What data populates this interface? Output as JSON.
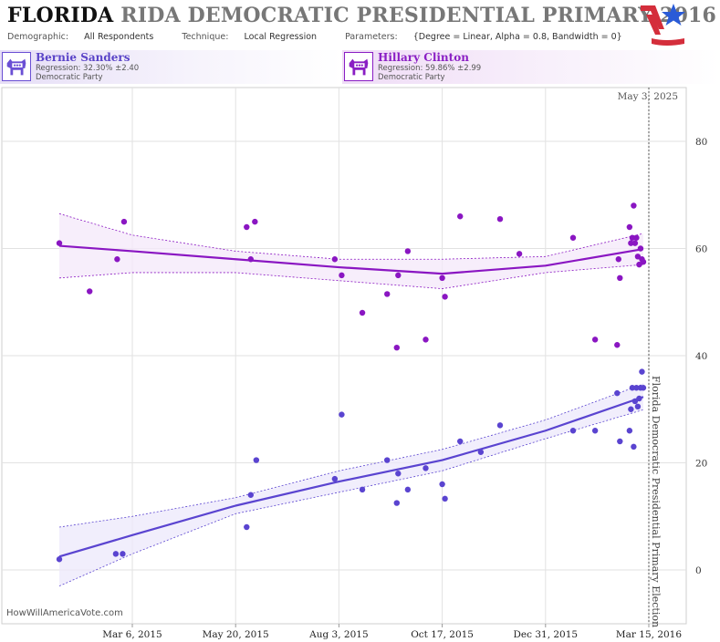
{
  "header": {
    "title_state": "FLORIDA",
    "title_rest": "RIDA DEMOCRATIC PRESIDENTIAL PRIMARY 2016",
    "demographic_label": "Demographic:",
    "demographic_value": "All Respondents",
    "technique_label": "Technique:",
    "technique_value": "Local Regression",
    "parameters_label": "Parameters:",
    "parameters_value": "{Degree = Linear, Alpha = 0.8, Bandwidth = 0}"
  },
  "legend": [
    {
      "name": "Bernie Sanders",
      "regression": "Regression: 32.30% ±2.40",
      "party": "Democratic Party",
      "icon": "democratic-donkey-icon"
    },
    {
      "name": "Hillary Clinton",
      "regression": "Regression: 59.86% ±2.99",
      "party": "Democratic Party",
      "icon": "democratic-donkey-icon"
    }
  ],
  "footer": {
    "url": "HowWillAmericaVote.com"
  },
  "colors": {
    "sanders": "#5a44d0",
    "clinton": "#8a16c2",
    "band_sanders": "#ece8fb",
    "band_clinton": "#f4e8f9",
    "grid": "#e2e2e2",
    "logo_red": "#d42e3b",
    "logo_blue": "#2a5bd7"
  },
  "chart_data": {
    "type": "scatter",
    "x_axis": "date",
    "xlim": [
      "2015-01-01",
      "2016-03-16"
    ],
    "ylim": [
      -5,
      88
    ],
    "y_ticks": [
      0,
      20,
      40,
      60,
      80
    ],
    "x_tick_labels": [
      {
        "date": "2015-03-06",
        "label": "Mar 6, 2015"
      },
      {
        "date": "2015-05-20",
        "label": "May 20, 2015"
      },
      {
        "date": "2015-08-03",
        "label": "Aug 3, 2015"
      },
      {
        "date": "2015-10-17",
        "label": "Oct 17, 2015"
      },
      {
        "date": "2015-12-31",
        "label": "Dec 31, 2015"
      },
      {
        "date": "2016-03-15",
        "label": "Mar 15, 2016"
      }
    ],
    "grid": true,
    "corner_label": "May 3, 2025",
    "event_line": {
      "date": "2016-03-15",
      "label": "Florida Democratic Presidential Primary Election"
    },
    "series": [
      {
        "name": "Bernie Sanders",
        "points": [
          [
            "2015-01-12",
            2
          ],
          [
            "2015-02-22",
            3
          ],
          [
            "2015-02-27",
            3
          ],
          [
            "2015-05-28",
            8
          ],
          [
            "2015-05-31",
            14
          ],
          [
            "2015-06-04",
            20.5
          ],
          [
            "2015-07-31",
            17
          ],
          [
            "2015-08-05",
            29
          ],
          [
            "2015-08-20",
            15
          ],
          [
            "2015-09-07",
            20.5
          ],
          [
            "2015-09-14",
            12.5
          ],
          [
            "2015-09-15",
            18
          ],
          [
            "2015-09-22",
            15
          ],
          [
            "2015-10-05",
            19
          ],
          [
            "2015-10-17",
            16
          ],
          [
            "2015-10-19",
            13.3
          ],
          [
            "2015-10-30",
            24
          ],
          [
            "2015-11-14",
            22
          ],
          [
            "2015-11-28",
            27
          ],
          [
            "2016-01-20",
            26
          ],
          [
            "2016-02-05",
            26
          ],
          [
            "2016-02-21",
            33
          ],
          [
            "2016-02-23",
            24
          ],
          [
            "2016-03-01",
            26
          ],
          [
            "2016-03-02",
            30
          ],
          [
            "2016-03-03",
            34
          ],
          [
            "2016-03-04",
            23
          ],
          [
            "2016-03-05",
            31.5
          ],
          [
            "2016-03-06",
            34
          ],
          [
            "2016-03-07",
            30.5
          ],
          [
            "2016-03-08",
            32
          ],
          [
            "2016-03-09",
            34
          ],
          [
            "2016-03-10",
            37
          ],
          [
            "2016-03-11",
            34
          ]
        ],
        "trend": [
          [
            "2015-01-12",
            2.5
          ],
          [
            "2015-03-06",
            6.5
          ],
          [
            "2015-05-20",
            12
          ],
          [
            "2015-08-03",
            16.5
          ],
          [
            "2015-10-17",
            20.5
          ],
          [
            "2015-12-31",
            26
          ],
          [
            "2016-03-11",
            32.3
          ]
        ],
        "band_upper": [
          [
            "2015-01-12",
            8
          ],
          [
            "2015-03-06",
            10
          ],
          [
            "2015-05-20",
            13.5
          ],
          [
            "2015-08-03",
            18.5
          ],
          [
            "2015-10-17",
            22.5
          ],
          [
            "2015-12-31",
            28
          ],
          [
            "2016-03-11",
            34.7
          ]
        ],
        "band_lower": [
          [
            "2015-01-12",
            -3
          ],
          [
            "2015-03-06",
            3
          ],
          [
            "2015-05-20",
            10.5
          ],
          [
            "2015-08-03",
            14.5
          ],
          [
            "2015-10-17",
            18.5
          ],
          [
            "2015-12-31",
            24.5
          ],
          [
            "2016-03-11",
            29.9
          ]
        ]
      },
      {
        "name": "Hillary Clinton",
        "points": [
          [
            "2015-01-12",
            61
          ],
          [
            "2015-02-03",
            52
          ],
          [
            "2015-02-23",
            58
          ],
          [
            "2015-02-28",
            65
          ],
          [
            "2015-05-28",
            64
          ],
          [
            "2015-05-31",
            58
          ],
          [
            "2015-06-03",
            65
          ],
          [
            "2015-07-31",
            58
          ],
          [
            "2015-08-05",
            55
          ],
          [
            "2015-08-20",
            48
          ],
          [
            "2015-09-07",
            51.5
          ],
          [
            "2015-09-14",
            41.5
          ],
          [
            "2015-09-15",
            55
          ],
          [
            "2015-09-22",
            59.5
          ],
          [
            "2015-10-05",
            43
          ],
          [
            "2015-10-17",
            54.5
          ],
          [
            "2015-10-19",
            51
          ],
          [
            "2015-10-30",
            66
          ],
          [
            "2015-11-28",
            65.5
          ],
          [
            "2015-12-12",
            59
          ],
          [
            "2016-01-20",
            62
          ],
          [
            "2016-02-05",
            43
          ],
          [
            "2016-02-21",
            42
          ],
          [
            "2016-02-22",
            58
          ],
          [
            "2016-02-23",
            54.5
          ],
          [
            "2016-03-01",
            64
          ],
          [
            "2016-03-02",
            61
          ],
          [
            "2016-03-03",
            62
          ],
          [
            "2016-03-04",
            68
          ],
          [
            "2016-03-05",
            61
          ],
          [
            "2016-03-06",
            62
          ],
          [
            "2016-03-07",
            58.5
          ],
          [
            "2016-03-08",
            57
          ],
          [
            "2016-03-09",
            60
          ],
          [
            "2016-03-10",
            58
          ],
          [
            "2016-03-11",
            57.5
          ]
        ],
        "trend": [
          [
            "2015-01-12",
            60.5
          ],
          [
            "2015-03-06",
            59.5
          ],
          [
            "2015-05-20",
            58
          ],
          [
            "2015-08-03",
            56.5
          ],
          [
            "2015-10-17",
            55.3
          ],
          [
            "2015-12-31",
            56.8
          ],
          [
            "2016-03-11",
            59.9
          ]
        ],
        "band_upper": [
          [
            "2015-01-12",
            66.5
          ],
          [
            "2015-03-06",
            62.5
          ],
          [
            "2015-05-20",
            59.5
          ],
          [
            "2015-08-03",
            58
          ],
          [
            "2015-10-17",
            58
          ],
          [
            "2015-12-31",
            58.5
          ],
          [
            "2016-03-11",
            62.8
          ]
        ],
        "band_lower": [
          [
            "2015-01-12",
            54.5
          ],
          [
            "2015-03-06",
            55.5
          ],
          [
            "2015-05-20",
            55.5
          ],
          [
            "2015-08-03",
            54
          ],
          [
            "2015-10-17",
            52.5
          ],
          [
            "2015-12-31",
            55.5
          ],
          [
            "2016-03-11",
            57
          ]
        ]
      }
    ]
  }
}
